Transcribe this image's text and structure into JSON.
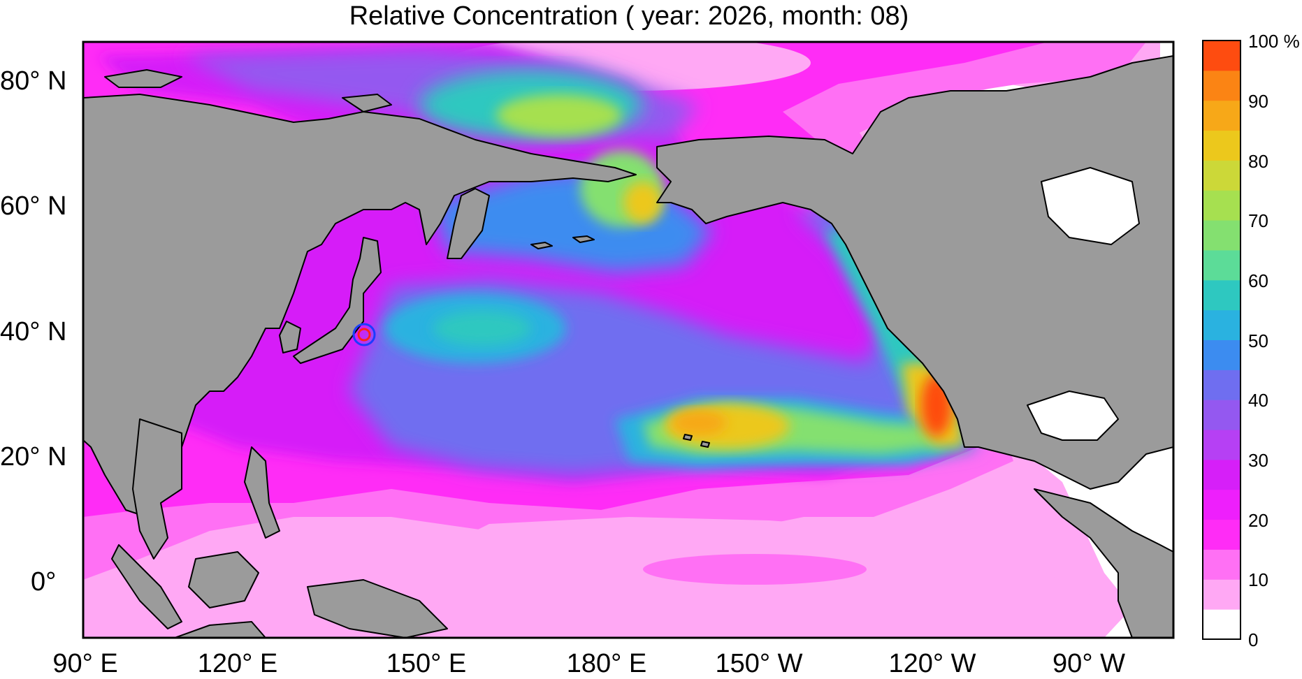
{
  "title": "Relative Concentration ( year: 2026, month: 08)",
  "map": {
    "lat_labels": [
      "80° N",
      "60° N",
      "40° N",
      "20° N",
      "0°"
    ],
    "lon_labels": [
      "90° E",
      "120° E",
      "150° E",
      "180° E",
      "150° W",
      "120° W",
      "90° W"
    ],
    "lon_range": [
      90,
      280
    ],
    "lat_range": [
      -10,
      85
    ],
    "land_color": "#9b9b9b",
    "ocean_color": "#ffffff",
    "marker": {
      "lon": 141,
      "lat": 38,
      "outer_color": "#1a3cff",
      "inner_color": "#ff2020"
    }
  },
  "colorbar": {
    "labels": [
      "100 %",
      "90",
      "80",
      "70",
      "60",
      "50",
      "40",
      "30",
      "20",
      "10",
      "0"
    ],
    "bins": [
      {
        "value": 0,
        "color": "#ffffff"
      },
      {
        "value": 5,
        "color": "#ffa8f4"
      },
      {
        "value": 10,
        "color": "#ff70f4"
      },
      {
        "value": 15,
        "color": "#ff2cf6"
      },
      {
        "value": 20,
        "color": "#ee1ffc"
      },
      {
        "value": 25,
        "color": "#d61ff8"
      },
      {
        "value": 30,
        "color": "#b640f4"
      },
      {
        "value": 35,
        "color": "#9458f0"
      },
      {
        "value": 40,
        "color": "#6f6ef0"
      },
      {
        "value": 45,
        "color": "#3c8cf0"
      },
      {
        "value": 50,
        "color": "#2ab2e0"
      },
      {
        "value": 55,
        "color": "#2ec8c0"
      },
      {
        "value": 60,
        "color": "#5cdc98"
      },
      {
        "value": 65,
        "color": "#84e070"
      },
      {
        "value": 70,
        "color": "#a6e050"
      },
      {
        "value": 75,
        "color": "#ccd838"
      },
      {
        "value": 80,
        "color": "#ecc81c"
      },
      {
        "value": 85,
        "color": "#f7a818"
      },
      {
        "value": 90,
        "color": "#fb8414"
      },
      {
        "value": 95,
        "color": "#fe4c10"
      }
    ]
  }
}
